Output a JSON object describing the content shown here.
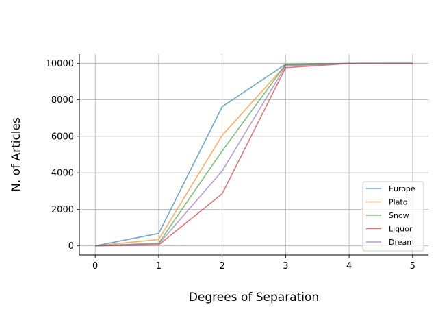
{
  "chart_data": {
    "type": "line",
    "title": "",
    "xlabel": "Degrees of Separation",
    "ylabel": "N. of Articles",
    "x": [
      0,
      1,
      2,
      3,
      4,
      5
    ],
    "xticks": [
      "0",
      "1",
      "2",
      "3",
      "4",
      "5"
    ],
    "yticks": [
      "0",
      "2000",
      "4000",
      "6000",
      "8000",
      "10000"
    ],
    "ytick_values": [
      0,
      2000,
      4000,
      6000,
      8000,
      10000
    ],
    "xlim": [
      -0.25,
      5.25
    ],
    "ylim": [
      -500,
      10500
    ],
    "grid": true,
    "legend_position": "lower-right",
    "series": [
      {
        "name": "Europe",
        "color": "#1f77b4",
        "values": [
          0,
          680,
          7620,
          9950,
          9990,
          10000
        ]
      },
      {
        "name": "Plato",
        "color": "#ff7f0e",
        "values": [
          0,
          350,
          6050,
          9900,
          9985,
          10000
        ]
      },
      {
        "name": "Snow",
        "color": "#2ca02c",
        "values": [
          0,
          150,
          5200,
          9930,
          9990,
          10000
        ]
      },
      {
        "name": "Liquor",
        "color": "#d62728",
        "values": [
          0,
          50,
          2850,
          9760,
          9985,
          9990
        ]
      },
      {
        "name": "Dream",
        "color": "#9467bd",
        "values": [
          0,
          100,
          4100,
          9850,
          9990,
          9995
        ]
      }
    ]
  }
}
